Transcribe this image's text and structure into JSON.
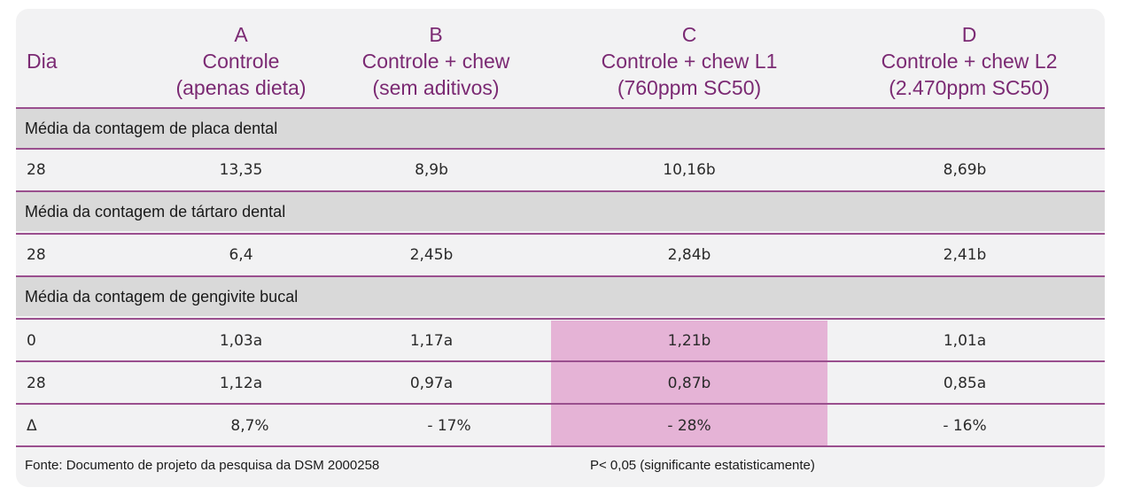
{
  "header": {
    "dia": "Dia",
    "columns": [
      {
        "letter": "A",
        "line1": "Controle",
        "line2": "(apenas dieta)"
      },
      {
        "letter": "B",
        "line1": "Controle + chew",
        "line2": "(sem aditivos)"
      },
      {
        "letter": "C",
        "line1": "Controle + chew L1",
        "line2": "(760ppm SC50)"
      },
      {
        "letter": "D",
        "line1": "Controle + chew L2",
        "line2": "(2.470ppm SC50)"
      }
    ]
  },
  "sections": [
    {
      "title": "Média da contagem de placa dental",
      "rows": [
        {
          "dia": "28",
          "values": [
            "13,35",
            "8,9b",
            "10,16b",
            "8,69b"
          ]
        }
      ]
    },
    {
      "title": "Média da contagem de tártaro dental",
      "rows": [
        {
          "dia": "28",
          "values": [
            "6,4",
            "2,45b",
            "2,84b",
            "2,41b"
          ]
        }
      ]
    },
    {
      "title": "Média da contagem de gengivite bucal",
      "rows": [
        {
          "dia": "0",
          "values": [
            "1,03a",
            "1,17a",
            "1,21b",
            "1,01a"
          ]
        },
        {
          "dia": "28",
          "values": [
            "1,12a",
            "0,97a",
            "0,87b",
            "0,85a"
          ]
        },
        {
          "dia": "Δ",
          "values": [
            "8,7%",
            "- 17%",
            "- 28%",
            "- 16%"
          ]
        }
      ]
    }
  ],
  "footer": {
    "source": "Fonte: Documento de projeto da pesquisa da DSM 2000258",
    "note": "P< 0,05 (significante estatisticamente)"
  },
  "colors": {
    "header_text": "#7b2a73",
    "rule": "#9a4f8e",
    "section_bg": "#d9d9d9",
    "highlight": "#e5b3d6",
    "card_bg": "#f2f2f3"
  }
}
